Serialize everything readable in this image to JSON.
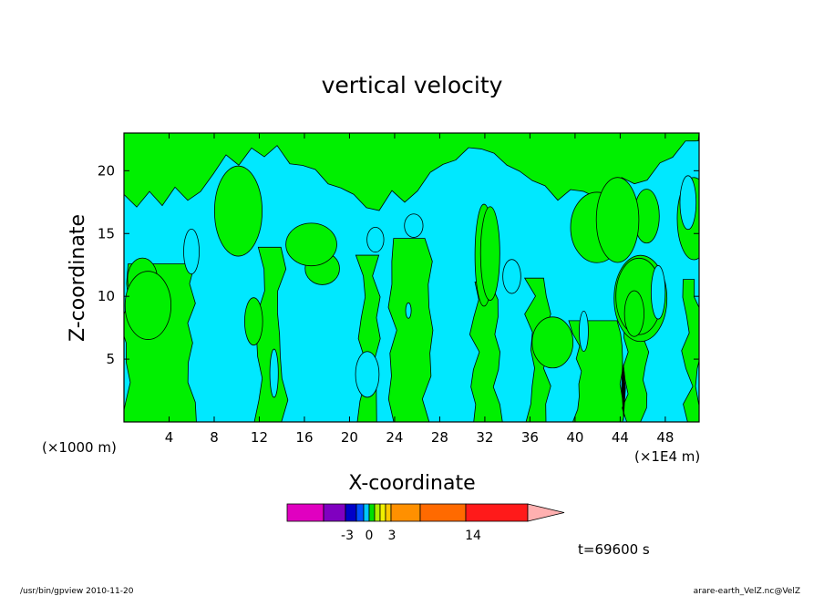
{
  "chart_data": {
    "type": "heatmap",
    "title": "vertical velocity",
    "xlabel": "X-coordinate",
    "ylabel": "Z-coordinate",
    "x_unit_label": "(×1E4 m)",
    "y_unit_label": "(×1000 m)",
    "xlim": [
      0,
      51
    ],
    "ylim": [
      0,
      23
    ],
    "x_ticks": [
      4,
      8,
      12,
      16,
      20,
      24,
      28,
      32,
      36,
      40,
      44,
      48
    ],
    "y_ticks": [
      5,
      10,
      15,
      20
    ],
    "colorbar": {
      "colors": [
        "#e000c0",
        "#8000c0",
        "#0000c8",
        "#0050ff",
        "#00c8ff",
        "#00e000",
        "#b0f000",
        "#f0f000",
        "#ffc800",
        "#ff9000",
        "#ff6a00",
        "#ff1a1a",
        "#ff7070",
        "#ffb0b0"
      ],
      "tick_labels": [
        "-3",
        "0",
        "3",
        "14"
      ]
    },
    "time_label": "t=69600 s",
    "footer_left": "/usr/bin/gpview   2010-11-20",
    "footer_right": "arare-earth_VelZ.nc@VelZ",
    "field_colors": {
      "positive": "#00f000",
      "negative": "#00e8ff"
    },
    "green_regions_x": [
      [
        0,
        6
      ],
      [
        12,
        14
      ],
      [
        21,
        22.5
      ],
      [
        24,
        27
      ],
      [
        31,
        33
      ],
      [
        36,
        37.5
      ],
      [
        40,
        44
      ],
      [
        44.5,
        46
      ],
      [
        50,
        51
      ]
    ]
  }
}
